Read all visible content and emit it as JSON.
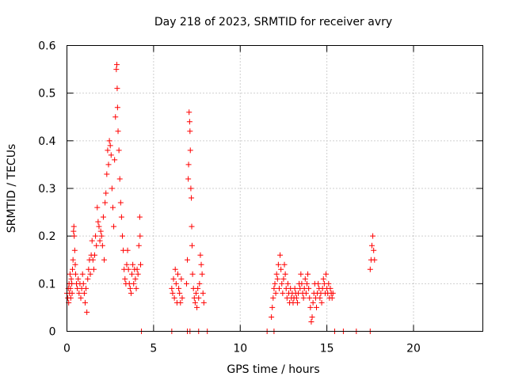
{
  "colors": {
    "series": "#ff0000",
    "axis": "#000000",
    "grid": "#a0a0a0",
    "background": "#ffffff"
  },
  "chart_data": {
    "type": "scatter",
    "title": "Day 218 of 2023, SRMTID for receiver avry",
    "xlabel": "GPS time / hours",
    "ylabel": "SRMTID / TECUs",
    "xlim": [
      0,
      24
    ],
    "ylim": [
      0,
      0.6
    ],
    "xticks": [
      0,
      5,
      10,
      15,
      20
    ],
    "yticks": [
      0,
      0.1,
      0.2,
      0.3,
      0.4,
      0.5,
      0.6
    ],
    "xtick_labels": [
      "0",
      "5",
      "10",
      "15",
      "20"
    ],
    "ytick_labels": [
      "0",
      "0.1",
      "0.2",
      "0.3",
      "0.4",
      "0.5",
      "0.6"
    ],
    "grid": true,
    "marker": "+",
    "series": [
      {
        "name": "SRMTID",
        "points": [
          [
            0.0,
            0.08
          ],
          [
            0.05,
            0.07
          ],
          [
            0.08,
            0.09
          ],
          [
            0.1,
            0.06
          ],
          [
            0.12,
            0.1
          ],
          [
            0.15,
            0.08
          ],
          [
            0.18,
            0.12
          ],
          [
            0.2,
            0.09
          ],
          [
            0.22,
            0.07
          ],
          [
            0.25,
            0.11
          ],
          [
            0.28,
            0.1
          ],
          [
            0.3,
            0.08
          ],
          [
            0.32,
            0.13
          ],
          [
            0.35,
            0.15
          ],
          [
            0.38,
            0.21
          ],
          [
            0.4,
            0.22
          ],
          [
            0.42,
            0.2
          ],
          [
            0.45,
            0.17
          ],
          [
            0.48,
            0.14
          ],
          [
            0.5,
            0.12
          ],
          [
            0.55,
            0.1
          ],
          [
            0.6,
            0.09
          ],
          [
            0.65,
            0.11
          ],
          [
            0.7,
            0.08
          ],
          [
            0.75,
            0.1
          ],
          [
            0.8,
            0.07
          ],
          [
            0.85,
            0.09
          ],
          [
            0.9,
            0.12
          ],
          [
            0.95,
            0.1
          ],
          [
            1.0,
            0.08
          ],
          [
            1.05,
            0.06
          ],
          [
            1.1,
            0.09
          ],
          [
            1.15,
            0.04
          ],
          [
            1.2,
            0.11
          ],
          [
            1.25,
            0.13
          ],
          [
            1.3,
            0.15
          ],
          [
            1.35,
            0.12
          ],
          [
            1.4,
            0.16
          ],
          [
            1.45,
            0.19
          ],
          [
            1.5,
            0.15
          ],
          [
            1.55,
            0.13
          ],
          [
            1.6,
            0.16
          ],
          [
            1.65,
            0.2
          ],
          [
            1.7,
            0.18
          ],
          [
            1.75,
            0.26
          ],
          [
            1.8,
            0.23
          ],
          [
            1.85,
            0.22
          ],
          [
            1.9,
            0.19
          ],
          [
            1.95,
            0.21
          ],
          [
            2.0,
            0.2
          ],
          [
            2.05,
            0.18
          ],
          [
            2.1,
            0.24
          ],
          [
            2.15,
            0.15
          ],
          [
            2.2,
            0.27
          ],
          [
            2.25,
            0.29
          ],
          [
            2.3,
            0.33
          ],
          [
            2.35,
            0.38
          ],
          [
            2.4,
            0.35
          ],
          [
            2.45,
            0.4
          ],
          [
            2.5,
            0.39
          ],
          [
            2.55,
            0.37
          ],
          [
            2.6,
            0.3
          ],
          [
            2.65,
            0.26
          ],
          [
            2.7,
            0.22
          ],
          [
            2.75,
            0.36
          ],
          [
            2.8,
            0.45
          ],
          [
            2.85,
            0.55
          ],
          [
            2.88,
            0.56
          ],
          [
            2.9,
            0.51
          ],
          [
            2.92,
            0.47
          ],
          [
            2.95,
            0.42
          ],
          [
            3.0,
            0.38
          ],
          [
            3.05,
            0.32
          ],
          [
            3.1,
            0.27
          ],
          [
            3.15,
            0.24
          ],
          [
            3.2,
            0.2
          ],
          [
            3.25,
            0.17
          ],
          [
            3.3,
            0.13
          ],
          [
            3.35,
            0.11
          ],
          [
            3.4,
            0.1
          ],
          [
            3.45,
            0.14
          ],
          [
            3.5,
            0.17
          ],
          [
            3.55,
            0.13
          ],
          [
            3.6,
            0.1
          ],
          [
            3.65,
            0.09
          ],
          [
            3.7,
            0.08
          ],
          [
            3.75,
            0.12
          ],
          [
            3.8,
            0.14
          ],
          [
            3.85,
            0.1
          ],
          [
            3.9,
            0.13
          ],
          [
            3.95,
            0.11
          ],
          [
            4.0,
            0.09
          ],
          [
            4.05,
            0.13
          ],
          [
            4.1,
            0.12
          ],
          [
            4.15,
            0.18
          ],
          [
            4.2,
            0.24
          ],
          [
            4.22,
            0.2
          ],
          [
            4.25,
            0.14
          ],
          [
            6.05,
            0.09
          ],
          [
            6.1,
            0.08
          ],
          [
            6.15,
            0.11
          ],
          [
            6.2,
            0.07
          ],
          [
            6.25,
            0.13
          ],
          [
            6.3,
            0.1
          ],
          [
            6.35,
            0.06
          ],
          [
            6.4,
            0.12
          ],
          [
            6.45,
            0.09
          ],
          [
            6.5,
            0.08
          ],
          [
            6.55,
            0.06
          ],
          [
            6.6,
            0.11
          ],
          [
            6.65,
            0.07
          ],
          [
            6.9,
            0.1
          ],
          [
            6.95,
            0.15
          ],
          [
            7.0,
            0.32
          ],
          [
            7.02,
            0.35
          ],
          [
            7.05,
            0.46
          ],
          [
            7.08,
            0.44
          ],
          [
            7.1,
            0.42
          ],
          [
            7.12,
            0.38
          ],
          [
            7.15,
            0.3
          ],
          [
            7.18,
            0.28
          ],
          [
            7.2,
            0.22
          ],
          [
            7.22,
            0.18
          ],
          [
            7.25,
            0.12
          ],
          [
            7.3,
            0.09
          ],
          [
            7.35,
            0.07
          ],
          [
            7.4,
            0.06
          ],
          [
            7.45,
            0.08
          ],
          [
            7.5,
            0.05
          ],
          [
            7.55,
            0.09
          ],
          [
            7.6,
            0.07
          ],
          [
            7.65,
            0.1
          ],
          [
            7.7,
            0.16
          ],
          [
            7.75,
            0.14
          ],
          [
            7.8,
            0.12
          ],
          [
            7.85,
            0.08
          ],
          [
            7.9,
            0.06
          ],
          [
            11.8,
            0.03
          ],
          [
            11.85,
            0.05
          ],
          [
            11.9,
            0.07
          ],
          [
            11.95,
            0.09
          ],
          [
            12.0,
            0.1
          ],
          [
            12.05,
            0.08
          ],
          [
            12.1,
            0.12
          ],
          [
            12.15,
            0.11
          ],
          [
            12.2,
            0.14
          ],
          [
            12.25,
            0.09
          ],
          [
            12.3,
            0.16
          ],
          [
            12.35,
            0.13
          ],
          [
            12.4,
            0.1
          ],
          [
            12.45,
            0.08
          ],
          [
            12.5,
            0.11
          ],
          [
            12.55,
            0.14
          ],
          [
            12.6,
            0.12
          ],
          [
            12.65,
            0.09
          ],
          [
            12.7,
            0.07
          ],
          [
            12.75,
            0.1
          ],
          [
            12.8,
            0.08
          ],
          [
            12.85,
            0.06
          ],
          [
            12.9,
            0.09
          ],
          [
            12.95,
            0.07
          ],
          [
            13.0,
            0.08
          ],
          [
            13.05,
            0.06
          ],
          [
            13.1,
            0.07
          ],
          [
            13.15,
            0.09
          ],
          [
            13.2,
            0.08
          ],
          [
            13.25,
            0.07
          ],
          [
            13.3,
            0.06
          ],
          [
            13.35,
            0.08
          ],
          [
            13.4,
            0.1
          ],
          [
            13.45,
            0.09
          ],
          [
            13.5,
            0.12
          ],
          [
            13.55,
            0.1
          ],
          [
            13.6,
            0.08
          ],
          [
            13.65,
            0.07
          ],
          [
            13.7,
            0.09
          ],
          [
            13.75,
            0.11
          ],
          [
            13.8,
            0.08
          ],
          [
            13.85,
            0.1
          ],
          [
            13.9,
            0.12
          ],
          [
            13.95,
            0.09
          ],
          [
            14.0,
            0.07
          ],
          [
            14.05,
            0.05
          ],
          [
            14.1,
            0.02
          ],
          [
            14.15,
            0.03
          ],
          [
            14.2,
            0.06
          ],
          [
            14.25,
            0.08
          ],
          [
            14.3,
            0.1
          ],
          [
            14.35,
            0.07
          ],
          [
            14.4,
            0.05
          ],
          [
            14.45,
            0.08
          ],
          [
            14.5,
            0.1
          ],
          [
            14.55,
            0.09
          ],
          [
            14.6,
            0.07
          ],
          [
            14.65,
            0.08
          ],
          [
            14.7,
            0.06
          ],
          [
            14.75,
            0.09
          ],
          [
            14.8,
            0.11
          ],
          [
            14.85,
            0.1
          ],
          [
            14.9,
            0.08
          ],
          [
            14.95,
            0.12
          ],
          [
            15.0,
            0.09
          ],
          [
            15.05,
            0.08
          ],
          [
            15.1,
            0.1
          ],
          [
            15.15,
            0.07
          ],
          [
            15.2,
            0.09
          ],
          [
            15.25,
            0.08
          ],
          [
            15.3,
            0.07
          ],
          [
            15.35,
            0.08
          ],
          [
            17.5,
            0.13
          ],
          [
            17.55,
            0.15
          ],
          [
            17.6,
            0.18
          ],
          [
            17.65,
            0.2
          ],
          [
            17.7,
            0.17
          ],
          [
            17.75,
            0.15
          ],
          [
            4.3,
            0
          ],
          [
            6.05,
            0
          ],
          [
            6.95,
            0
          ],
          [
            7.1,
            0
          ],
          [
            7.6,
            0
          ],
          [
            8.1,
            0
          ],
          [
            11.55,
            0
          ],
          [
            11.95,
            0
          ],
          [
            15.45,
            0
          ],
          [
            15.95,
            0
          ],
          [
            16.7,
            0
          ],
          [
            17.5,
            0
          ]
        ]
      }
    ]
  }
}
